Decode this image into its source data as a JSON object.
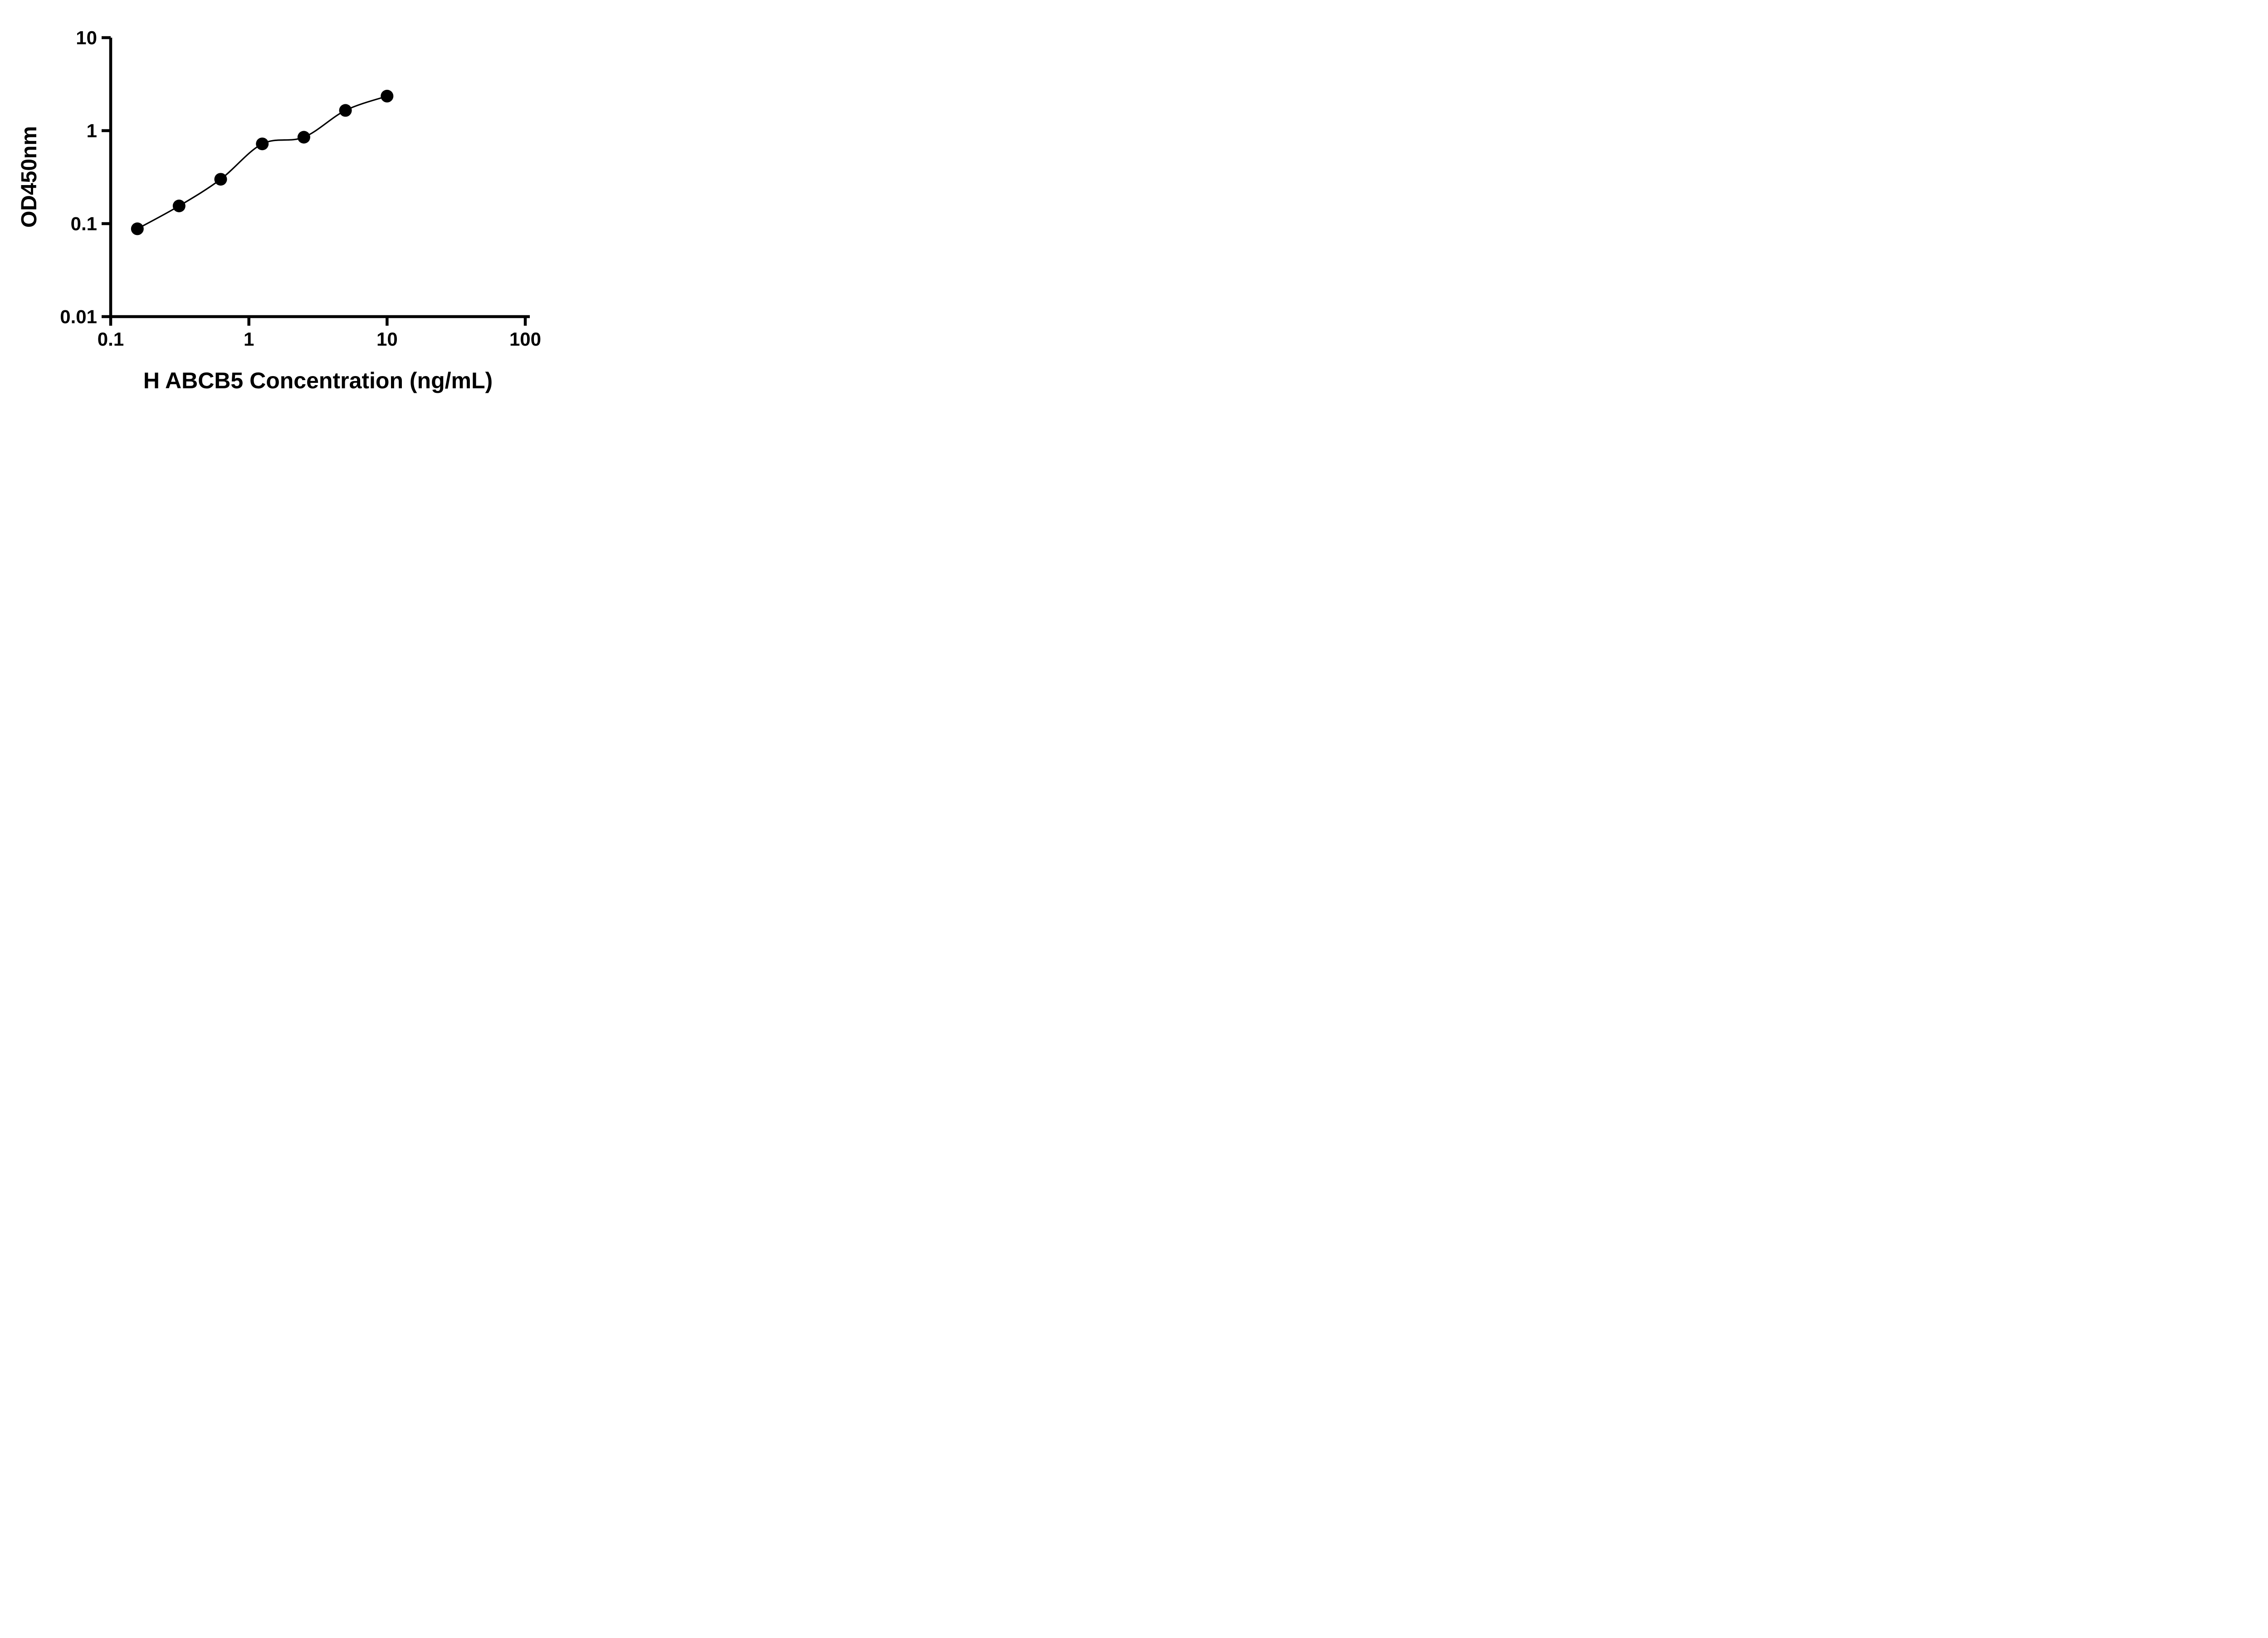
{
  "chart_data": {
    "type": "scatter",
    "title": "",
    "xlabel": "H ABCB5 Concentration (ng/mL)",
    "ylabel": "OD450nm",
    "x_scale": "log",
    "y_scale": "log",
    "xlim": [
      0.1,
      100
    ],
    "ylim": [
      0.01,
      10
    ],
    "x_ticks": [
      0.1,
      1,
      10,
      100
    ],
    "x_tick_labels": [
      "0.1",
      "1",
      "10",
      "100"
    ],
    "y_ticks": [
      0.01,
      0.1,
      1,
      10
    ],
    "y_tick_labels": [
      "0.01",
      "0.1",
      "1",
      "10"
    ],
    "grid": false,
    "legend": false,
    "marker": "filled-circle",
    "curve": "smooth-fit-through-points",
    "series": [
      {
        "x": [
          0.156,
          0.3125,
          0.625,
          1.25,
          2.5,
          5,
          10
        ],
        "y": [
          0.088,
          0.155,
          0.3,
          0.72,
          0.85,
          1.65,
          2.35
        ]
      }
    ]
  },
  "colors": {
    "background": "#ffffff",
    "axis": "#000000",
    "marker": "#000000",
    "curve": "#000000",
    "text": "#000000"
  }
}
